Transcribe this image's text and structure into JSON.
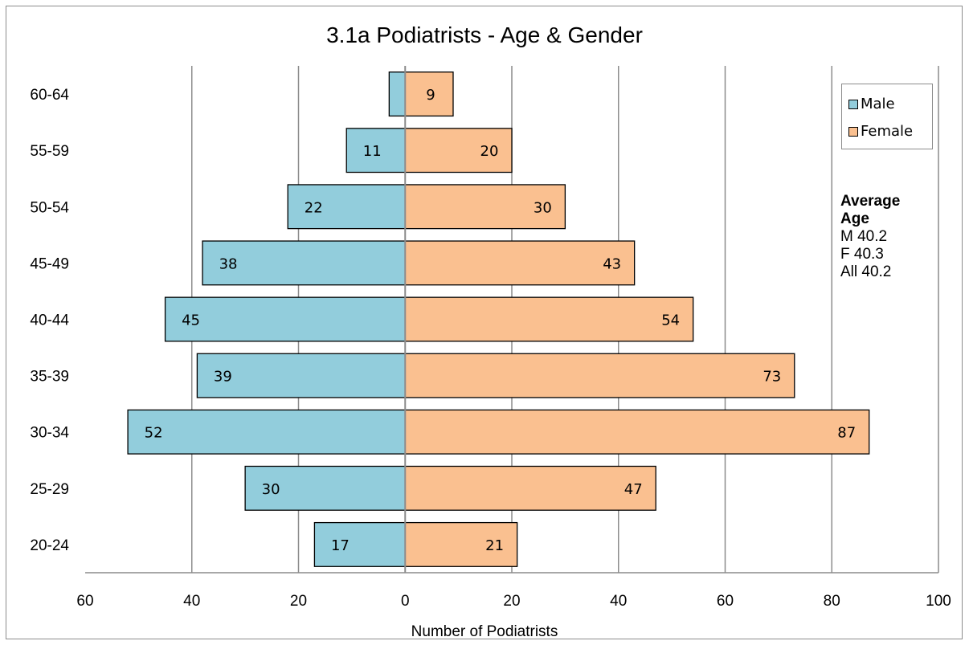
{
  "chart_data": {
    "type": "bar",
    "orientation": "horizontal",
    "title": "3.1a Podiatrists - Age & Gender",
    "xlabel": "Number of Podiatrists",
    "categories": [
      "60-64",
      "55-59",
      "50-54",
      "45-49",
      "40-44",
      "35-39",
      "30-34",
      "25-29",
      "20-24"
    ],
    "series": [
      {
        "name": "Male",
        "color": "#92cddc",
        "values": [
          3,
          11,
          22,
          38,
          45,
          39,
          52,
          30,
          17
        ],
        "labels": [
          "",
          "11",
          "22",
          "38",
          "45",
          "39",
          "52",
          "30",
          "17"
        ]
      },
      {
        "name": "Female",
        "color": "#fac090",
        "values": [
          9,
          20,
          30,
          43,
          54,
          73,
          87,
          47,
          21
        ],
        "labels": [
          "9",
          "20",
          "30",
          "43",
          "54",
          "73",
          "87",
          "47",
          "21"
        ]
      }
    ],
    "xlim": [
      -60,
      100
    ],
    "x_ticks": [
      -60,
      -40,
      -20,
      0,
      20,
      40,
      60,
      80,
      100
    ],
    "x_tick_labels": [
      "60",
      "40",
      "20",
      "0",
      "20",
      "40",
      "60",
      "80",
      "100"
    ],
    "grid": "vertical",
    "legend_position": "right"
  },
  "annotation": {
    "heading_line1": "Average",
    "heading_line2": "Age",
    "male": "M 40.2",
    "female": "F  40.3",
    "all": "All 40.2"
  }
}
